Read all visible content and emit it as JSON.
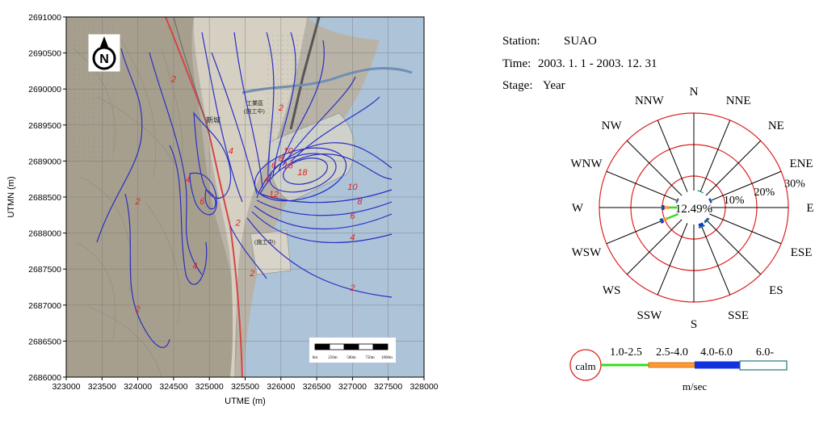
{
  "map": {
    "x_axis_label": "UTME (m)",
    "y_axis_label": "UTMN (m)",
    "x_ticks": [
      "323000",
      "323500",
      "324000",
      "324500",
      "325000",
      "325500",
      "326000",
      "326500",
      "327000",
      "327500",
      "328000"
    ],
    "y_ticks": [
      "2691000",
      "2690500",
      "2690000",
      "2689500",
      "2689000",
      "2688500",
      "2688000",
      "2687500",
      "2687000",
      "2686500",
      "2686000"
    ],
    "north_symbol": "N",
    "scale_bar_labels": [
      "0m",
      "250m",
      "500m",
      "750m",
      "1000m"
    ],
    "place_labels": [
      "新城",
      "工業區",
      "(施工中)",
      "(施工中)"
    ],
    "contour_labels": [
      {
        "text": "2",
        "x": 324500,
        "y": 2690100
      },
      {
        "text": "2",
        "x": 324000,
        "y": 2688400
      },
      {
        "text": "2",
        "x": 324000,
        "y": 2686900
      },
      {
        "text": "2",
        "x": 325400,
        "y": 2688100
      },
      {
        "text": "2",
        "x": 325600,
        "y": 2687400
      },
      {
        "text": "2",
        "x": 326000,
        "y": 2689700
      },
      {
        "text": "2",
        "x": 327000,
        "y": 2687200
      },
      {
        "text": "4",
        "x": 324700,
        "y": 2688700
      },
      {
        "text": "4",
        "x": 324800,
        "y": 2687500
      },
      {
        "text": "4",
        "x": 325300,
        "y": 2689100
      },
      {
        "text": "4",
        "x": 325800,
        "y": 2688700
      },
      {
        "text": "4",
        "x": 327000,
        "y": 2687900
      },
      {
        "text": "6",
        "x": 324900,
        "y": 2688400
      },
      {
        "text": "6",
        "x": 327000,
        "y": 2688200
      },
      {
        "text": "6",
        "x": 325900,
        "y": 2688900
      },
      {
        "text": "8",
        "x": 327100,
        "y": 2688400
      },
      {
        "text": "8",
        "x": 326000,
        "y": 2689000
      },
      {
        "text": "10",
        "x": 327000,
        "y": 2688600
      },
      {
        "text": "10",
        "x": 326100,
        "y": 2689100
      },
      {
        "text": "12",
        "x": 325900,
        "y": 2688500
      },
      {
        "text": "16",
        "x": 326100,
        "y": 2688900
      },
      {
        "text": "18",
        "x": 326300,
        "y": 2688800
      }
    ]
  },
  "rose": {
    "station_label": "Station:",
    "station_value": "SUAO",
    "time_label": "Time:",
    "time_value": "2003. 1. 1 -  2003. 12. 31",
    "stage_label": "Stage:",
    "stage_value": "Year",
    "directions": [
      "N",
      "NNE",
      "NE",
      "ENE",
      "E",
      "ESE",
      "ES",
      "SSE",
      "S",
      "SSW",
      "WS",
      "WSW",
      "W",
      "WNW",
      "NW",
      "NNW"
    ],
    "ring_labels": [
      "10%",
      "20%",
      "30%"
    ],
    "calm_value": "12.49%",
    "calm_label": "calm",
    "speed_bins": [
      "1.0-2.5",
      "2.5-4.0",
      "4.0-6.0",
      "6.0-"
    ],
    "speed_unit": "m/sec",
    "speed_colors": [
      "#33dd22",
      "#ff9933",
      "#1133dd",
      "#ffffff"
    ],
    "frequencies_percent": {
      "N": [
        0.3,
        0.2,
        0.2,
        0.0
      ],
      "NNE": [
        0.6,
        0.4,
        0.5,
        0.1
      ],
      "NE": [
        0.4,
        0.3,
        0.2,
        0.0
      ],
      "ENE": [
        1.0,
        0.5,
        0.5,
        0.0
      ],
      "E": [
        0.7,
        0.4,
        0.3,
        0.0
      ],
      "ESE": [
        0.5,
        0.3,
        0.2,
        0.0
      ],
      "ES": [
        0.8,
        0.5,
        0.6,
        0.2
      ],
      "SSE": [
        1.0,
        0.6,
        1.0,
        0.2
      ],
      "S": [
        0.6,
        0.3,
        0.3,
        0.0
      ],
      "SSW": [
        0.3,
        0.2,
        0.1,
        0.0
      ],
      "WS": [
        0.5,
        0.3,
        0.2,
        0.0
      ],
      "WSW": [
        5.2,
        1.5,
        0.8,
        0.0
      ],
      "W": [
        4.0,
        1.5,
        0.8,
        0.0
      ],
      "WNW": [
        1.0,
        0.6,
        0.3,
        0.0
      ],
      "NW": [
        0.5,
        0.3,
        0.2,
        0.0
      ],
      "NNW": [
        0.4,
        0.3,
        0.2,
        0.0
      ]
    }
  }
}
